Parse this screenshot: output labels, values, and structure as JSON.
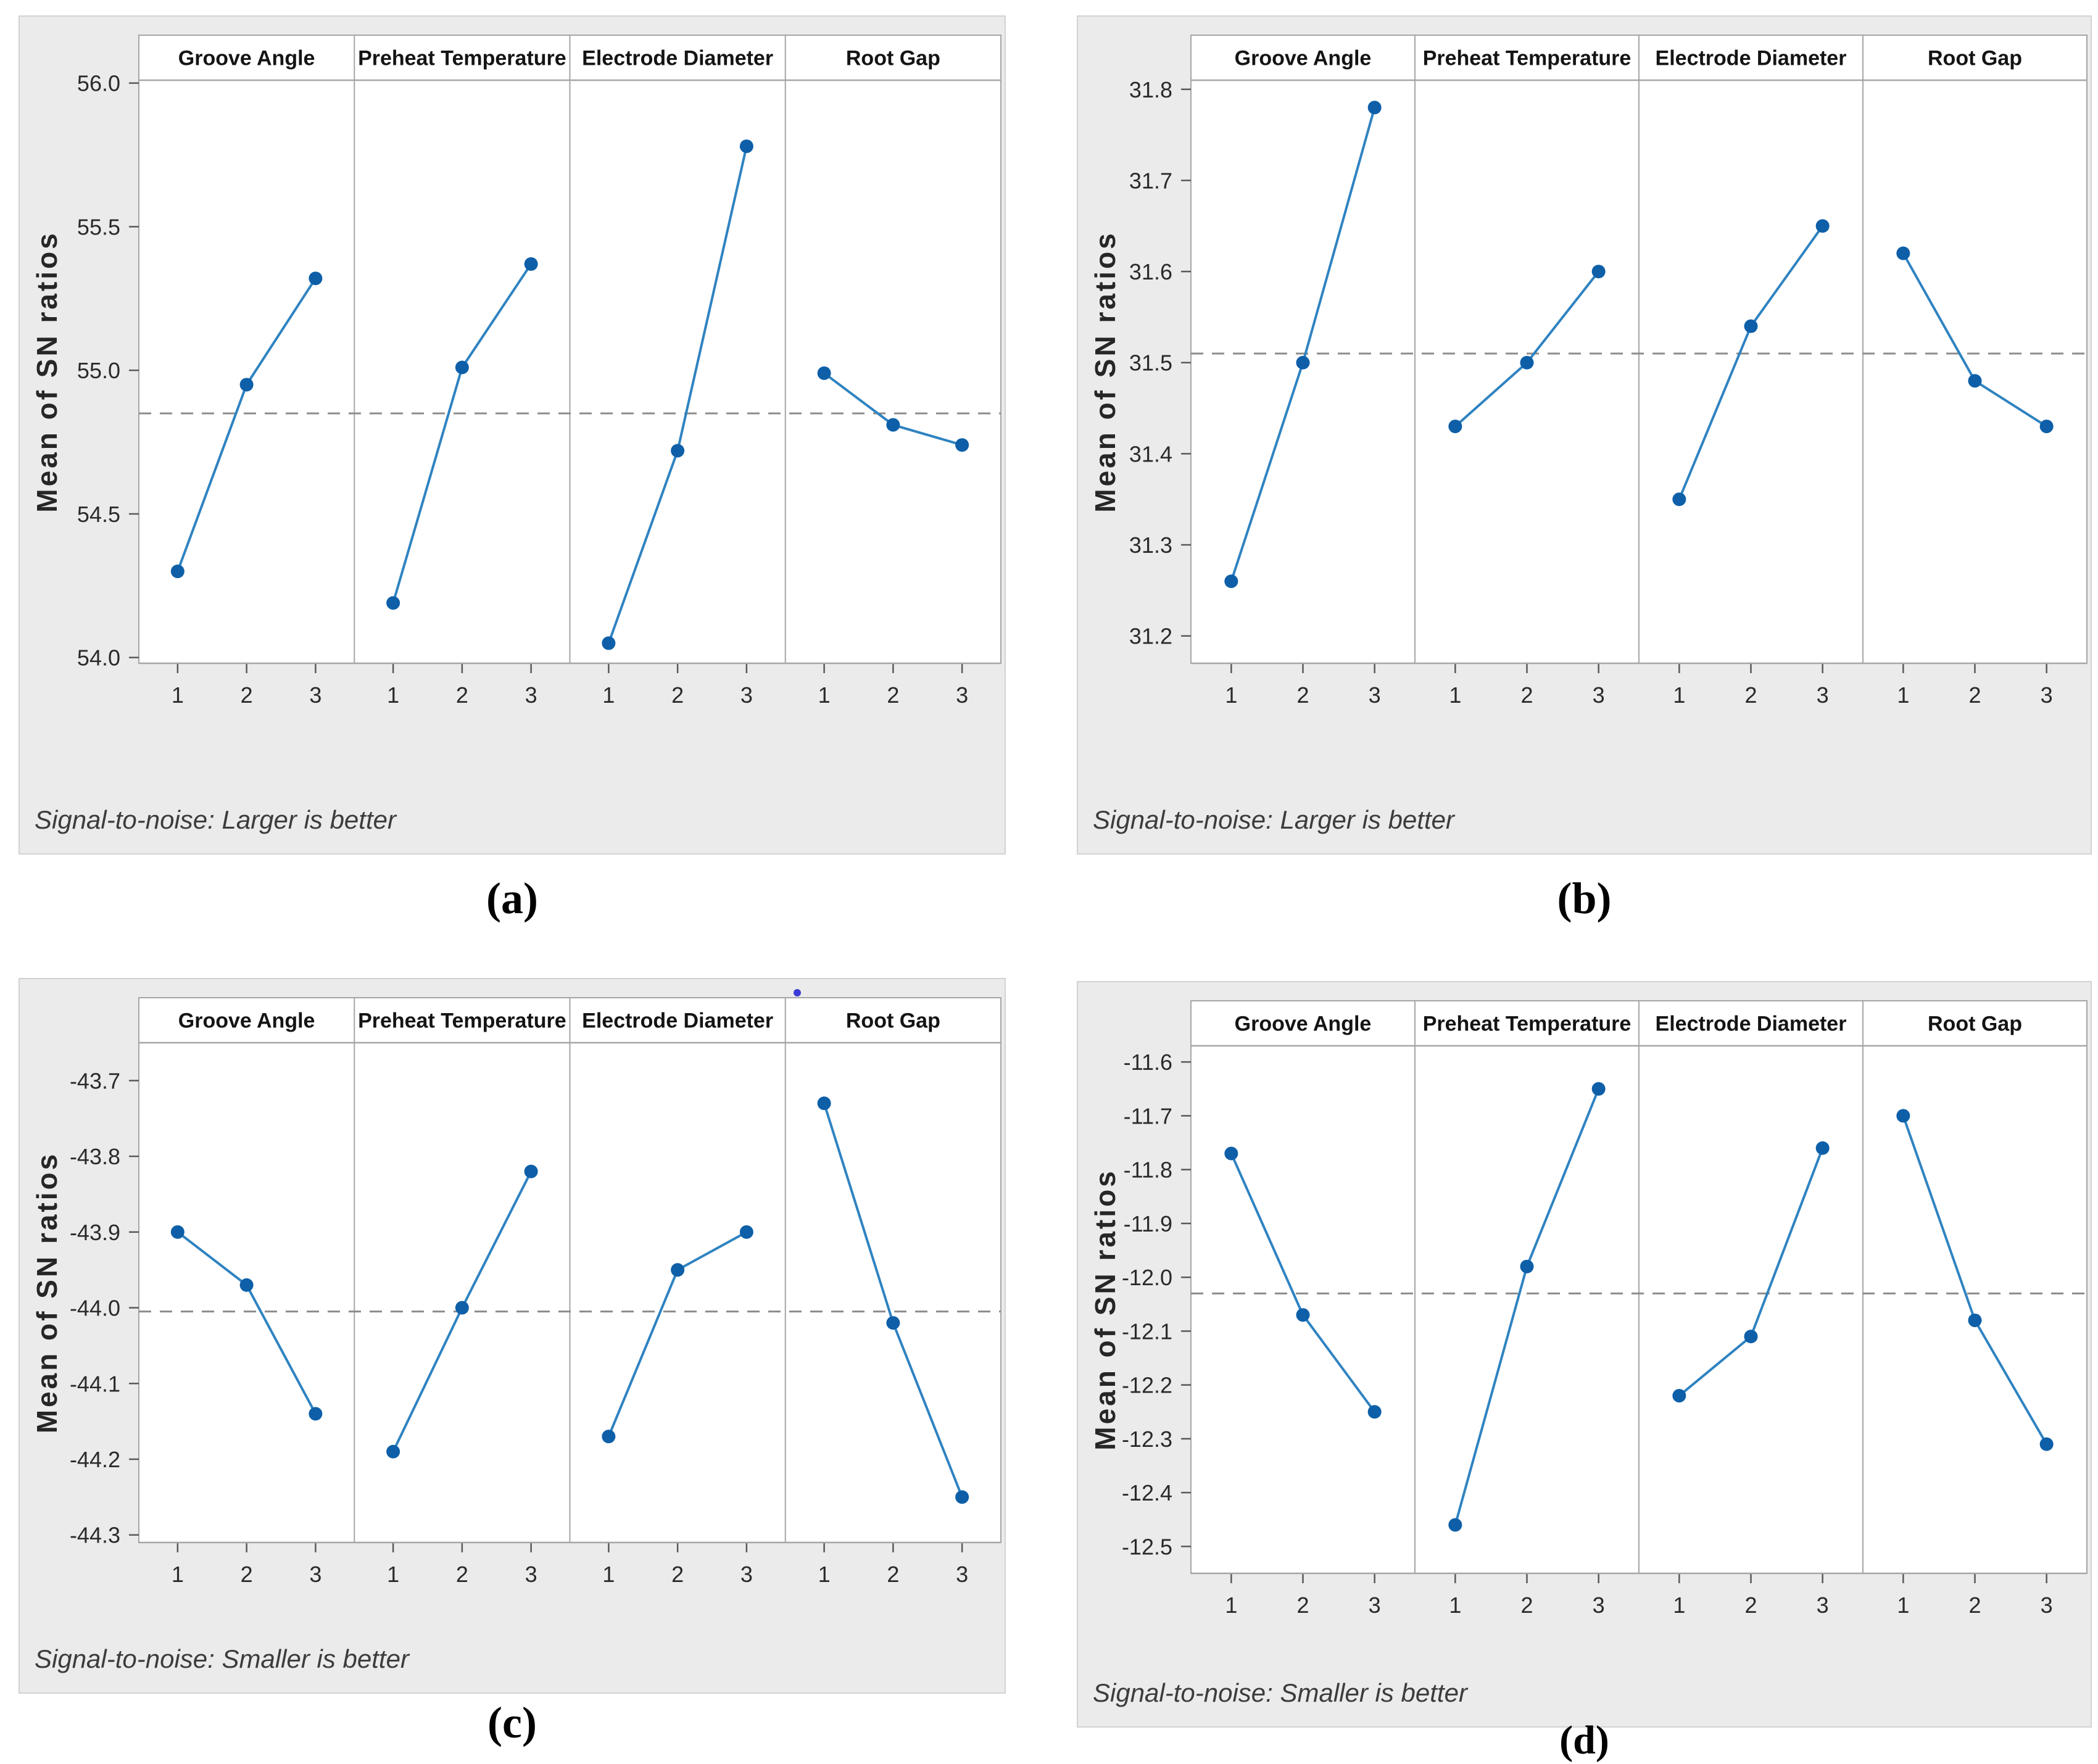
{
  "shared": {
    "x_tick_labels": [
      "1",
      "2",
      "3"
    ],
    "y_axis_label": "Mean of SN ratios"
  },
  "colors": {
    "page_bg": "#ffffff",
    "card_bg": "#ebebeb",
    "card_border": "#d2d2d2",
    "plot_bg": "#ffffff",
    "grid_line": "#a6a6a6",
    "tick_mark": "#595959",
    "marker": "#0e5fa8",
    "line": "#2f83c1",
    "ref_line": "#8c8c8c",
    "footer_text": "#3c3c3c",
    "artifact": "#3b3bd6"
  },
  "chart_data": [
    {
      "panel_label": "(a)",
      "type": "line",
      "ylabel": "Mean of SN ratios",
      "footer": "Signal-to-noise: Larger is better",
      "factors": [
        "Groove Angle",
        "Preheat Temperature",
        "Electrode Diameter",
        "Root Gap"
      ],
      "categories": [
        "1",
        "2",
        "3"
      ],
      "y_ticks": [
        56.0,
        55.5,
        55.0,
        54.5,
        54.0
      ],
      "y_tick_labels": [
        "56.0",
        "55.5",
        "55.0",
        "54.5",
        "54.0"
      ],
      "ylim": [
        53.98,
        56.01
      ],
      "ref_line": 54.85,
      "grid": false,
      "series": [
        {
          "name": "Groove Angle",
          "values": [
            54.3,
            54.95,
            55.32
          ]
        },
        {
          "name": "Preheat Temperature",
          "values": [
            54.19,
            55.01,
            55.37
          ]
        },
        {
          "name": "Electrode Diameter",
          "values": [
            54.05,
            54.72,
            55.78
          ]
        },
        {
          "name": "Root Gap",
          "values": [
            54.99,
            54.81,
            54.74
          ]
        }
      ]
    },
    {
      "panel_label": "(b)",
      "type": "line",
      "ylabel": "Mean of SN ratios",
      "footer": "Signal-to-noise: Larger is better",
      "factors": [
        "Groove Angle",
        "Preheat Temperature",
        "Electrode Diameter",
        "Root Gap"
      ],
      "categories": [
        "1",
        "2",
        "3"
      ],
      "y_ticks": [
        31.8,
        31.7,
        31.6,
        31.5,
        31.4,
        31.3,
        31.2
      ],
      "y_tick_labels": [
        "31.8",
        "31.7",
        "31.6",
        "31.5",
        "31.4",
        "31.3",
        "31.2"
      ],
      "ylim": [
        31.17,
        31.81
      ],
      "ref_line": 31.51,
      "grid": false,
      "series": [
        {
          "name": "Groove Angle",
          "values": [
            31.26,
            31.5,
            31.78
          ]
        },
        {
          "name": "Preheat Temperature",
          "values": [
            31.43,
            31.5,
            31.6
          ]
        },
        {
          "name": "Electrode Diameter",
          "values": [
            31.35,
            31.54,
            31.65
          ]
        },
        {
          "name": "Root Gap",
          "values": [
            31.62,
            31.48,
            31.43
          ]
        }
      ]
    },
    {
      "panel_label": "(c)",
      "type": "line",
      "ylabel": "Mean of SN ratios",
      "footer": "Signal-to-noise: Smaller is better",
      "factors": [
        "Groove Angle",
        "Preheat Temperature",
        "Electrode Diameter",
        "Root Gap"
      ],
      "categories": [
        "1",
        "2",
        "3"
      ],
      "y_ticks": [
        -43.7,
        -43.8,
        -43.9,
        -44.0,
        -44.1,
        -44.2,
        -44.3
      ],
      "y_tick_labels": [
        "-43.7",
        "-43.8",
        "-43.9",
        "-44.0",
        "-44.1",
        "-44.2",
        "-44.3"
      ],
      "ylim": [
        -44.31,
        -43.65
      ],
      "ref_line": -44.005,
      "grid": false,
      "artifact_dot": true,
      "series": [
        {
          "name": "Groove Angle",
          "values": [
            -43.9,
            -43.97,
            -44.14
          ]
        },
        {
          "name": "Preheat Temperature",
          "values": [
            -44.19,
            -44.0,
            -43.82
          ]
        },
        {
          "name": "Electrode Diameter",
          "values": [
            -44.17,
            -43.95,
            -43.9
          ]
        },
        {
          "name": "Root Gap",
          "values": [
            -43.73,
            -44.02,
            -44.25
          ]
        }
      ]
    },
    {
      "panel_label": "(d)",
      "type": "line",
      "ylabel": "Mean of SN ratios",
      "footer": "Signal-to-noise: Smaller is better",
      "factors": [
        "Groove Angle",
        "Preheat Temperature",
        "Electrode Diameter",
        "Root Gap"
      ],
      "categories": [
        "1",
        "2",
        "3"
      ],
      "y_ticks": [
        -11.6,
        -11.7,
        -11.8,
        -11.9,
        -12.0,
        -12.1,
        -12.2,
        -12.3,
        -12.4,
        -12.5
      ],
      "y_tick_labels": [
        "-11.6",
        "-11.7",
        "-11.8",
        "-11.9",
        "-12.0",
        "-12.1",
        "-12.2",
        "-12.3",
        "-12.4",
        "-12.5"
      ],
      "ylim": [
        -12.55,
        -11.57
      ],
      "ref_line": -12.03,
      "grid": false,
      "series": [
        {
          "name": "Groove Angle",
          "values": [
            -11.77,
            -12.07,
            -12.25
          ]
        },
        {
          "name": "Preheat Temperature",
          "values": [
            -12.46,
            -11.98,
            -11.65
          ]
        },
        {
          "name": "Electrode Diameter",
          "values": [
            -12.22,
            -12.11,
            -11.76
          ]
        },
        {
          "name": "Root Gap",
          "values": [
            -11.7,
            -12.08,
            -12.31
          ]
        }
      ]
    }
  ]
}
